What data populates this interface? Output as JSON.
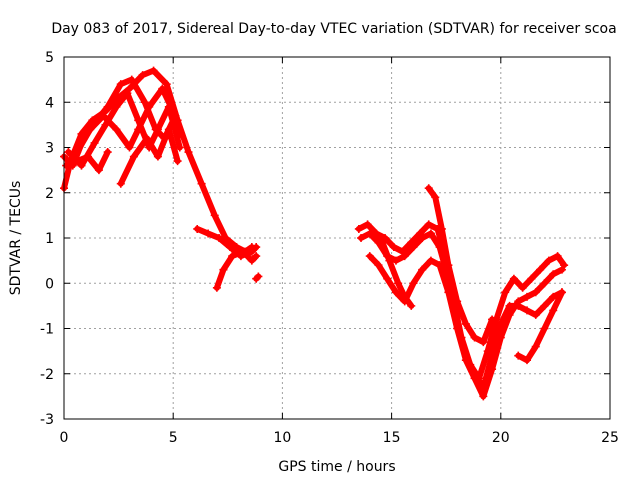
{
  "chart_data": {
    "type": "scatter",
    "title": "Day 083 of 2017, Sidereal Day-to-day VTEC variation (SDTVAR) for receiver scoa",
    "xlabel": "GPS time / hours",
    "ylabel": "SDTVAR / TECUs",
    "xlim": [
      0,
      25
    ],
    "ylim": [
      -3,
      5
    ],
    "xticks": [
      0,
      5,
      10,
      15,
      20,
      25
    ],
    "yticks": [
      -3,
      -2,
      -1,
      0,
      1,
      2,
      3,
      4,
      5
    ],
    "grid": true,
    "marker": "plus",
    "color": "#ff0000",
    "series": [
      {
        "x": [
          0.0,
          0.3,
          0.8,
          1.3,
          1.9,
          2.5,
          3.0,
          3.6,
          4.1,
          4.7,
          5.2,
          5.7,
          6.3,
          6.9,
          7.4,
          7.9,
          8.3,
          8.6
        ],
        "y": [
          2.1,
          2.7,
          3.3,
          3.6,
          3.8,
          4.1,
          4.3,
          4.6,
          4.7,
          4.4,
          3.6,
          2.9,
          2.2,
          1.5,
          1.0,
          0.8,
          0.7,
          0.8
        ]
      },
      {
        "x": [
          0.0,
          0.4,
          0.9,
          1.5,
          2.0,
          2.6,
          3.1,
          3.7,
          4.2,
          4.6,
          5.1
        ],
        "y": [
          2.8,
          2.6,
          3.2,
          3.6,
          3.9,
          4.4,
          4.5,
          4.0,
          3.4,
          3.2,
          3.7
        ]
      },
      {
        "x": [
          0.1,
          0.6,
          1.2,
          1.8,
          2.4,
          3.0,
          3.4,
          3.9,
          4.5,
          5.0,
          5.3
        ],
        "y": [
          2.6,
          2.9,
          3.4,
          3.7,
          3.4,
          3.0,
          3.4,
          3.9,
          4.3,
          3.8,
          3.3
        ]
      },
      {
        "x": [
          0.2,
          0.8,
          1.4,
          1.9,
          2.4,
          2.9,
          3.4,
          3.9,
          4.3,
          4.8,
          5.3
        ],
        "y": [
          2.9,
          2.6,
          3.1,
          3.5,
          3.9,
          4.2,
          3.6,
          3.0,
          3.4,
          3.9,
          3.0
        ]
      },
      {
        "x": [
          0.6,
          1.1,
          1.6,
          2.0
        ],
        "y": [
          2.7,
          2.8,
          2.5,
          2.9
        ]
      },
      {
        "x": [
          2.6,
          3.2,
          3.8,
          4.3,
          4.8,
          5.2
        ],
        "y": [
          2.2,
          2.8,
          3.2,
          2.8,
          3.4,
          2.7
        ]
      },
      {
        "x": [
          6.1,
          6.6,
          7.1,
          7.6,
          8.1,
          8.6,
          8.8
        ],
        "y": [
          1.2,
          1.1,
          1.0,
          0.8,
          0.6,
          0.7,
          0.8
        ]
      },
      {
        "x": [
          7.0,
          7.3,
          7.7,
          8.2,
          8.6,
          8.8
        ],
        "y": [
          -0.1,
          0.3,
          0.6,
          0.7,
          0.5,
          0.6
        ]
      },
      {
        "x": [
          8.8,
          8.9
        ],
        "y": [
          0.1,
          0.15
        ]
      },
      {
        "x": [
          13.5,
          13.9,
          14.3,
          14.7,
          15.1,
          15.5,
          15.9,
          16.3,
          16.7,
          17.1,
          17.4,
          17.8,
          18.2,
          18.6,
          19.0,
          19.4,
          19.8,
          20.2,
          20.6,
          21.0,
          21.4,
          21.8,
          22.2,
          22.6,
          22.9
        ],
        "y": [
          1.2,
          1.3,
          1.1,
          1.0,
          0.8,
          0.7,
          0.9,
          1.1,
          1.3,
          1.2,
          0.7,
          -0.3,
          -1.2,
          -1.8,
          -2.1,
          -1.5,
          -0.8,
          -0.2,
          0.1,
          -0.1,
          0.1,
          0.3,
          0.5,
          0.6,
          0.4
        ]
      },
      {
        "x": [
          13.6,
          14.0,
          14.4,
          14.8,
          15.2,
          15.6,
          16.0,
          16.4,
          16.8,
          17.2,
          17.6,
          18.0,
          18.4,
          18.8,
          19.2,
          19.6,
          20.0,
          20.4,
          20.8,
          21.2,
          21.6,
          22.0,
          22.4,
          22.8
        ],
        "y": [
          1.0,
          1.1,
          0.9,
          0.6,
          0.5,
          0.6,
          0.8,
          1.0,
          1.1,
          0.8,
          0.1,
          -0.9,
          -1.6,
          -2.0,
          -2.3,
          -1.6,
          -0.9,
          -0.5,
          -0.5,
          -0.6,
          -0.7,
          -0.5,
          -0.3,
          -0.2
        ]
      },
      {
        "x": [
          14.0,
          14.4,
          14.8,
          15.2,
          15.6,
          16.0,
          16.4,
          16.8,
          17.2,
          17.6,
          18.0,
          18.4,
          18.8,
          19.2,
          19.6,
          20.0,
          20.4,
          20.8,
          21.2,
          21.6,
          22.0,
          22.4,
          22.8
        ],
        "y": [
          0.6,
          0.4,
          0.1,
          -0.2,
          -0.4,
          0.0,
          0.3,
          0.5,
          0.4,
          -0.2,
          -1.0,
          -1.7,
          -2.1,
          -2.5,
          -1.9,
          -1.2,
          -0.7,
          -0.4,
          -0.3,
          -0.2,
          0.0,
          0.2,
          0.3
        ]
      },
      {
        "x": [
          16.7,
          17.0,
          17.3,
          17.6,
          18.0,
          18.4,
          18.8,
          19.2,
          19.6
        ],
        "y": [
          2.1,
          1.9,
          1.2,
          0.4,
          -0.4,
          -0.9,
          -1.2,
          -1.3,
          -0.8
        ]
      },
      {
        "x": [
          20.8,
          21.2,
          21.6,
          22.0,
          22.4,
          22.8
        ],
        "y": [
          -1.6,
          -1.7,
          -1.4,
          -1.0,
          -0.6,
          -0.2
        ]
      },
      {
        "x": [
          14.5,
          14.9,
          15.3,
          15.6,
          15.9
        ],
        "y": [
          1.0,
          0.5,
          0.0,
          -0.3,
          -0.5
        ]
      }
    ]
  }
}
